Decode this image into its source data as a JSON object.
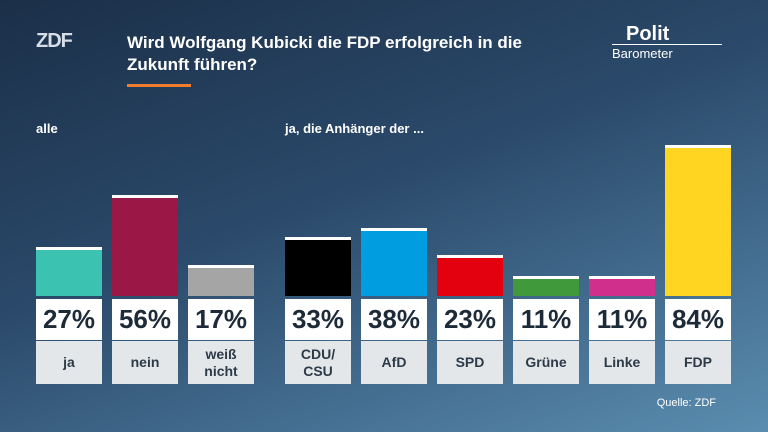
{
  "header": {
    "logo": "ZDF",
    "title": "Wird Wolfgang Kubicki die FDP erfolgreich in die Zukunft führen?",
    "brand_top": "Polit",
    "brand_bottom": "Barometer"
  },
  "chart_data": [
    {
      "type": "bar",
      "subtitle": "alle",
      "categories": [
        "ja",
        "nein",
        "weiß nicht"
      ],
      "values": [
        27,
        56,
        17
      ],
      "value_labels": [
        "27%",
        "56%",
        "17%"
      ],
      "colors": [
        "#3cc2b0",
        "#9b1746",
        "#a5a5a5"
      ],
      "ylim": [
        0,
        100
      ]
    },
    {
      "type": "bar",
      "subtitle": "ja, die Anhänger der ...",
      "categories": [
        "CDU/ CSU",
        "AfD",
        "SPD",
        "Grüne",
        "Linke",
        "FDP"
      ],
      "values": [
        33,
        38,
        23,
        11,
        11,
        84
      ],
      "value_labels": [
        "33%",
        "38%",
        "23%",
        "11%",
        "11%",
        "84%"
      ],
      "colors": [
        "#000000",
        "#009ee0",
        "#e3000f",
        "#409a3c",
        "#d12f8c",
        "#ffd521"
      ],
      "ylim": [
        0,
        100
      ]
    }
  ],
  "footer": {
    "source": "Quelle: ZDF"
  }
}
